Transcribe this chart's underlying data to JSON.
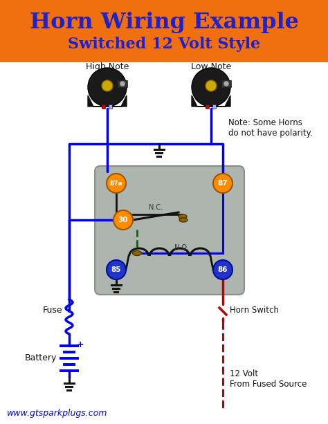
{
  "title_line1": "Horn Wiring Example",
  "title_line2": "Switched 12 Volt Style",
  "title_bg": "#F07010",
  "title_color": "#2020CC",
  "bg_color": "#ffffff",
  "relay_box_color": "#aab0aa",
  "wire_blue": "#0000ee",
  "wire_red": "#bb0000",
  "wire_green_dash": "#006600",
  "wire_black": "#111111",
  "pin_orange": "#FF8C00",
  "pin_blue": "#2233cc",
  "note_text": "Note: Some Horns\ndo not have polarity.",
  "label_high_note": "High Note",
  "label_low_note": "Low Note",
  "label_fuse": "Fuse",
  "label_battery": "Battery",
  "label_horn_switch": "Horn Switch",
  "label_12volt": "12 Volt\nFrom Fused Source",
  "label_nc": "N.C.",
  "label_no": "N.O.",
  "label_85": "85",
  "label_86": "86",
  "label_87": "87",
  "label_87a": "87a",
  "label_30": "30",
  "website": "www.gtsparkplugs.com"
}
